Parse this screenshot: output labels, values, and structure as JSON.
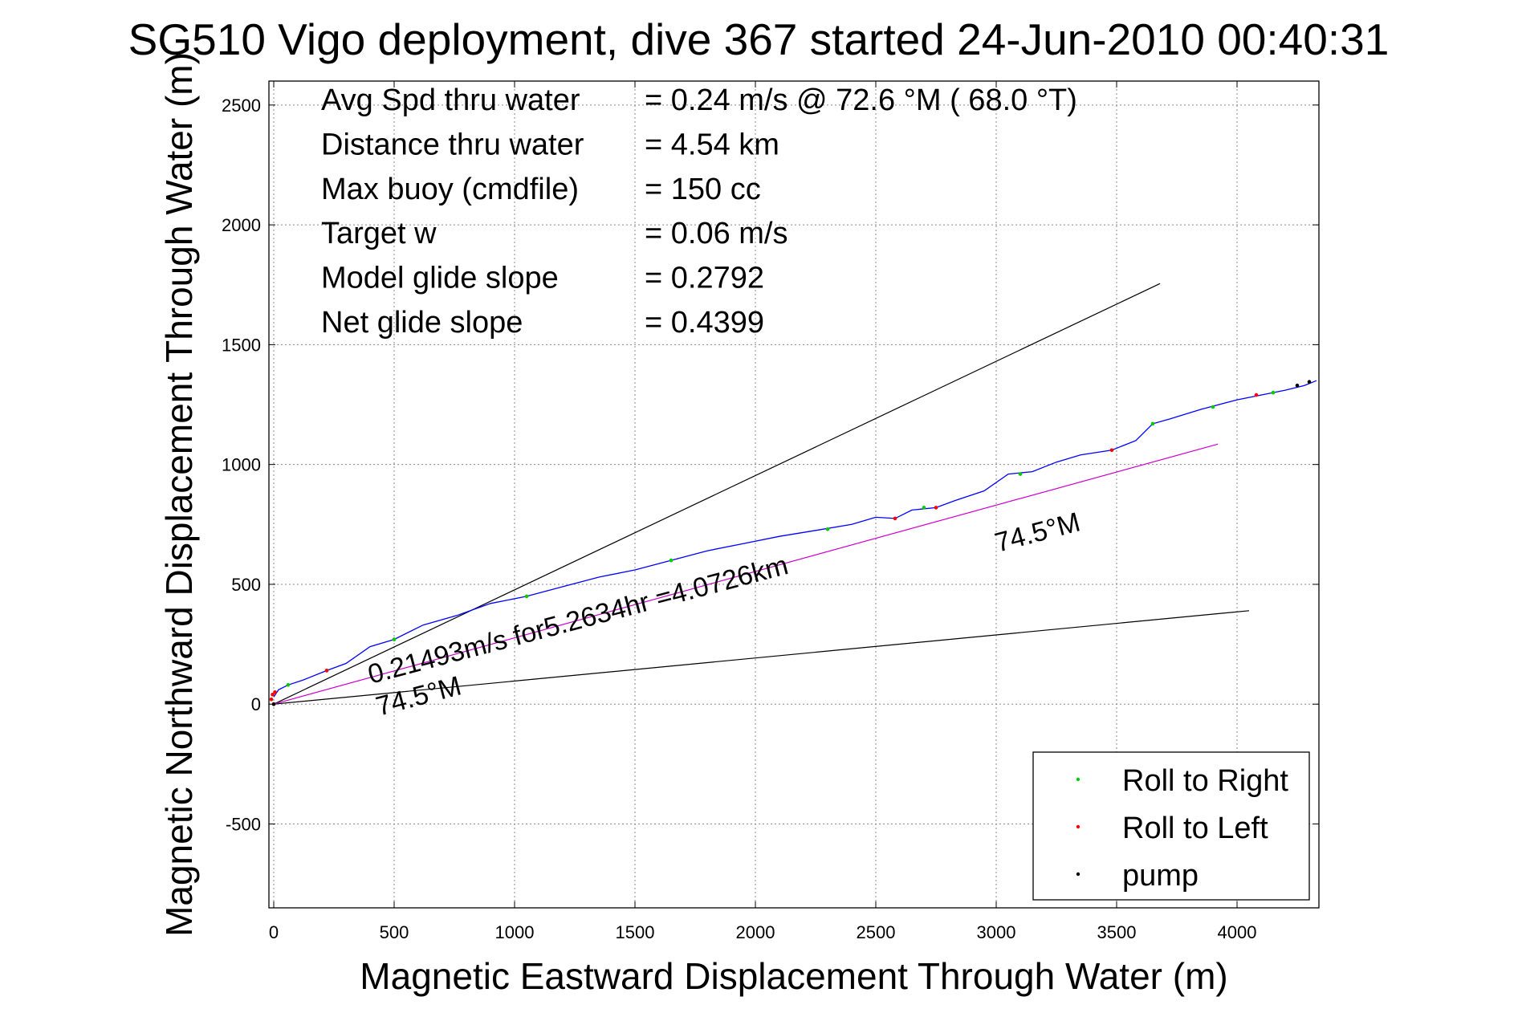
{
  "chart_data": {
    "type": "line",
    "title": "SG510 Vigo deployment, dive 367 started 24-Jun-2010 00:40:31",
    "xlabel": "Magnetic Eastward Displacement Through Water (m)",
    "ylabel": "Magnetic Northward Displacement Through Water (m)",
    "xlim": [
      -20,
      4340
    ],
    "ylim": [
      -850,
      2600
    ],
    "xticks": [
      0,
      500,
      1000,
      1500,
      2000,
      2500,
      3000,
      3500,
      4000
    ],
    "yticks": [
      -500,
      0,
      500,
      1000,
      1500,
      2000,
      2500
    ],
    "grid": true,
    "legend_position": "bottom-right",
    "info_lines": [
      {
        "label": "Avg Spd thru water",
        "value": "=  0.24 m/s @  72.6 °M ( 68.0 °T)"
      },
      {
        "label": "Distance thru water",
        "value": "=  4.54 km"
      },
      {
        "label": "Max buoy (cmdfile)",
        "value": "= 150 cc"
      },
      {
        "label": "Target w",
        "value": "= 0.06 m/s"
      },
      {
        "label": "Model glide slope",
        "value": "= 0.2792"
      },
      {
        "label": "Net glide slope",
        "value": "= 0.4399"
      }
    ],
    "annotations": {
      "course_label": "0.21493m/s for5.2634hr =4.0726km",
      "heading_label_far": "74.5°M",
      "heading_label_near": "74.5°M"
    },
    "series": [
      {
        "name": "track",
        "color": "#0000ff",
        "x": [
          0,
          20,
          60,
          120,
          220,
          300,
          400,
          500,
          620,
          760,
          900,
          1050,
          1200,
          1350,
          1500,
          1650,
          1800,
          1950,
          2100,
          2250,
          2400,
          2500,
          2580,
          2650,
          2750,
          2830,
          2950,
          3050,
          3150,
          3250,
          3350,
          3480,
          3580,
          3650,
          3720,
          3850,
          4000,
          4100,
          4200,
          4280,
          4330
        ],
        "y": [
          30,
          60,
          80,
          100,
          140,
          170,
          240,
          270,
          330,
          370,
          420,
          450,
          490,
          530,
          560,
          600,
          640,
          670,
          700,
          725,
          750,
          780,
          775,
          810,
          820,
          850,
          890,
          960,
          970,
          1010,
          1040,
          1060,
          1100,
          1170,
          1190,
          1230,
          1270,
          1290,
          1310,
          1330,
          1350
        ]
      },
      {
        "name": "Roll to Right",
        "color": "#00cc00",
        "marker": "dot",
        "x": [
          60,
          220,
          500,
          1050,
          1650,
          2300,
          2700,
          3100,
          3650,
          3900,
          4150
        ],
        "y": [
          80,
          140,
          270,
          450,
          600,
          730,
          820,
          960,
          1170,
          1240,
          1300
        ]
      },
      {
        "name": "Roll to Left",
        "color": "#ff0000",
        "marker": "dot",
        "x": [
          -10,
          -5,
          0,
          5,
          220,
          2580,
          2750,
          3480,
          4080
        ],
        "y": [
          20,
          40,
          0,
          50,
          140,
          775,
          820,
          1060,
          1290
        ]
      },
      {
        "name": "pump",
        "color": "#000000",
        "marker": "dot",
        "x": [
          0,
          4250,
          4300
        ],
        "y": [
          0,
          1330,
          1345
        ]
      }
    ],
    "reference_lines": [
      {
        "color": "#000000",
        "x": [
          0,
          3680
        ],
        "y": [
          0,
          1755
        ]
      },
      {
        "color": "#000000",
        "x": [
          0,
          4050
        ],
        "y": [
          0,
          390
        ]
      },
      {
        "color": "#cc00cc",
        "x": [
          0,
          3920
        ],
        "y": [
          0,
          1085
        ]
      }
    ]
  }
}
